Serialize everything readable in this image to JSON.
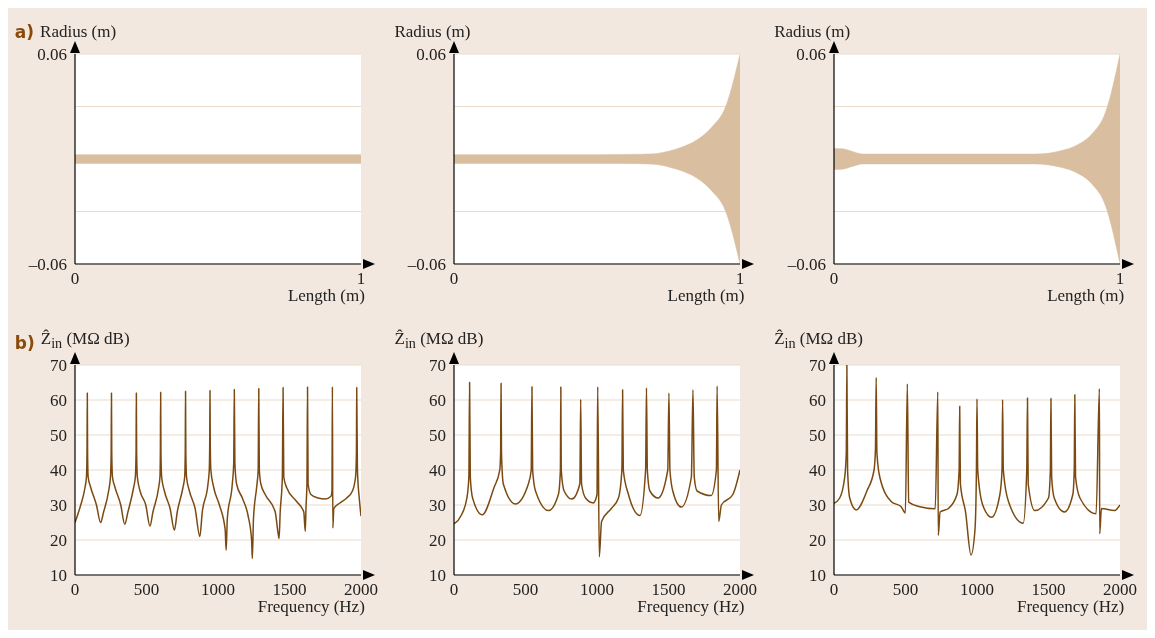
{
  "chart_data": [
    {
      "type": "area",
      "annotations": [
        "a)"
      ],
      "ylabel": "Radius (m)",
      "xlabel": "Length (m)",
      "x": [
        0,
        1
      ],
      "xlim": [
        0,
        1
      ],
      "xticks": [
        0,
        1
      ],
      "ylim": [
        -0.06,
        0.06
      ],
      "yticks": [
        {
          "value": -0.06,
          "label": "–0.06"
        },
        {
          "value": -0.03,
          "label": null
        },
        {
          "value": 0.03,
          "label": null
        },
        0.06
      ],
      "grid": "y",
      "series": [
        {
          "color": "#d9bfa0",
          "values": [
            0.0025,
            0.0025
          ]
        },
        {
          "color": "#d9bfa0",
          "values": [
            -0.0025,
            -0.0025
          ]
        }
      ]
    },
    {
      "type": "area",
      "ylabel": "Radius (m)",
      "xlabel": "Length (m)",
      "x": [
        0,
        0.5,
        0.65,
        0.7,
        0.75,
        0.8,
        0.85,
        0.9,
        0.95,
        1
      ],
      "xlim": [
        0,
        1
      ],
      "xticks": [
        0,
        1
      ],
      "ylim": [
        -0.06,
        0.06
      ],
      "yticks": [
        {
          "value": -0.06,
          "label": "–0.06"
        },
        {
          "value": -0.03,
          "label": null
        },
        {
          "value": 0.03,
          "label": null
        },
        0.06
      ],
      "grid": "y",
      "series": [
        {
          "color": "#d9bfa0",
          "values": [
            0.0025,
            0.0025,
            0.0027,
            0.003,
            0.0045,
            0.007,
            0.011,
            0.018,
            0.03,
            0.06
          ]
        },
        {
          "color": "#d9bfa0",
          "values": [
            -0.0025,
            -0.0025,
            -0.0027,
            -0.003,
            -0.0045,
            -0.007,
            -0.011,
            -0.018,
            -0.03,
            -0.06
          ]
        }
      ]
    },
    {
      "type": "area",
      "ylabel": "Radius (m)",
      "xlabel": "Length (m)",
      "x": [
        0,
        0.03,
        0.07,
        0.1,
        0.7,
        0.8,
        0.85,
        0.9,
        0.95,
        1
      ],
      "xlim": [
        0,
        1
      ],
      "xticks": [
        0,
        1
      ],
      "ylim": [
        -0.06,
        0.06
      ],
      "yticks": [
        {
          "value": -0.06,
          "label": "–0.06"
        },
        {
          "value": -0.03,
          "label": null
        },
        {
          "value": 0.03,
          "label": null
        },
        0.06
      ],
      "grid": "y",
      "series": [
        {
          "color": "#d9bfa0",
          "values": [
            0.006,
            0.0058,
            0.004,
            0.0028,
            0.0028,
            0.005,
            0.008,
            0.014,
            0.027,
            0.06
          ]
        },
        {
          "color": "#d9bfa0",
          "values": [
            -0.006,
            -0.0058,
            -0.004,
            -0.0028,
            -0.0028,
            -0.005,
            -0.008,
            -0.014,
            -0.027,
            -0.06
          ]
        }
      ]
    },
    {
      "type": "line",
      "annotations": [
        "b)"
      ],
      "ylabel": "Ẑ$_{in}$ (MΩ dB)",
      "xlabel": "Frequency (Hz)",
      "xlim": [
        0,
        2000
      ],
      "xticks": [
        0,
        500,
        1000,
        1500,
        2000
      ],
      "ylim": [
        10,
        70
      ],
      "yticks": [
        10,
        20,
        30,
        40,
        50,
        60,
        70
      ],
      "grid": "y",
      "x": [
        0,
        40,
        70,
        80,
        84,
        86,
        88,
        92,
        110,
        150,
        179,
        200,
        235,
        248,
        253,
        255,
        257,
        262,
        280,
        320,
        348,
        370,
        410,
        422,
        427,
        429,
        431,
        436,
        455,
        495,
        524,
        545,
        585,
        594,
        597,
        599,
        601,
        606,
        625,
        665,
        695,
        715,
        755,
        767,
        771,
        773,
        775,
        780,
        800,
        840,
        873,
        890,
        930,
        939,
        942,
        944,
        946,
        950,
        970,
        1010,
        1050,
        1057,
        1065,
        1100,
        1110,
        1114,
        1118,
        1130,
        1170,
        1210,
        1235,
        1240,
        1248,
        1270,
        1281,
        1285,
        1289,
        1300,
        1330,
        1400,
        1420,
        1427,
        1435,
        1450,
        1455,
        1460,
        1480,
        1550,
        1600,
        1610,
        1616,
        1622,
        1626,
        1630,
        1650,
        1700,
        1750,
        1790,
        1797,
        1800,
        1803,
        1810,
        1850,
        1900,
        1940,
        1962,
        1968,
        1970,
        1975,
        1990,
        2000
      ],
      "series": [
        {
          "color": "#7b4a12",
          "values": [
            25,
            30,
            35,
            38,
            45,
            62,
            45,
            38,
            35,
            30,
            25,
            28,
            34,
            38,
            45,
            62,
            45,
            38,
            35,
            30,
            24.5,
            28,
            35,
            38,
            45,
            62,
            45,
            38,
            34,
            30,
            24,
            28,
            35,
            38,
            45,
            62.2,
            45,
            38,
            34,
            29,
            22.8,
            28,
            35,
            38,
            45,
            62.5,
            45,
            38,
            34,
            29,
            21,
            28,
            36,
            40,
            47,
            62.7,
            47,
            40,
            35,
            30,
            23,
            17.1,
            26,
            36,
            42,
            63,
            42,
            36,
            32,
            27,
            20,
            14.7,
            26,
            35,
            40,
            63.3,
            40,
            36,
            33,
            28,
            22,
            20.4,
            28,
            38,
            63.6,
            38,
            35,
            31,
            28,
            22.5,
            30,
            36,
            63.7,
            36,
            33,
            32,
            31.7,
            32.5,
            34,
            63.8,
            23.4,
            29,
            30.5,
            32,
            34,
            38,
            45,
            63.6,
            40,
            31,
            26.8
          ]
        }
      ]
    },
    {
      "type": "line",
      "ylabel": "Ẑ$_{in}$ (MΩ dB)",
      "xlabel": "Frequency (Hz)",
      "xlim": [
        0,
        2000
      ],
      "xticks": [
        0,
        500,
        1000,
        1500,
        2000
      ],
      "ylim": [
        10,
        70
      ],
      "yticks": [
        10,
        20,
        30,
        40,
        50,
        60,
        70
      ],
      "grid": "y",
      "x": [
        0,
        50,
        90,
        104,
        109,
        114,
        130,
        197,
        280,
        320,
        326,
        329,
        332,
        345,
        429,
        520,
        540,
        545,
        550,
        570,
        661,
        730,
        744,
        747,
        750,
        770,
        824,
        880,
        886,
        892,
        920,
        974,
        1000,
        1005,
        1016,
        1032,
        1100,
        1150,
        1174,
        1179,
        1184,
        1220,
        1300,
        1340,
        1346,
        1352,
        1370,
        1427,
        1495,
        1503,
        1510,
        1530,
        1589,
        1660,
        1671,
        1680,
        1700,
        1798,
        1835,
        1840,
        1851,
        1870,
        1950,
        2000
      ],
      "series": [
        {
          "color": "#7b4a12",
          "values": [
            24.6,
            27,
            32,
            38,
            65.1,
            38,
            32,
            27.2,
            35,
            40,
            45,
            64.8,
            45,
            36,
            30.3,
            36,
            40,
            63.8,
            40,
            34,
            28.4,
            33,
            40,
            63.7,
            40,
            34,
            31.7,
            36,
            60.2,
            36,
            32,
            30.6,
            33,
            63.8,
            15.2,
            25.3,
            29,
            32,
            40,
            62.9,
            40,
            33,
            27,
            40,
            63.5,
            40,
            34,
            32,
            40,
            62,
            40,
            34,
            29.4,
            38,
            62.9,
            38,
            34,
            32.7,
            40,
            64,
            25.3,
            30,
            33,
            40
          ]
        }
      ]
    },
    {
      "type": "line",
      "ylabel": "Ẑ$_{in}$ (MΩ dB)",
      "xlabel": "Frequency (Hz)",
      "xlim": [
        0,
        2000
      ],
      "xticks": [
        0,
        500,
        1000,
        1500,
        2000
      ],
      "ylim": [
        10,
        70
      ],
      "yticks": [
        10,
        20,
        30,
        40,
        50,
        60,
        70
      ],
      "grid": "y",
      "x": [
        0,
        40,
        75,
        86,
        90,
        95,
        110,
        155,
        230,
        280,
        290,
        295,
        300,
        320,
        400,
        470,
        499,
        513,
        522,
        600,
        708,
        726,
        729,
        742,
        800,
        860,
        875,
        879,
        884,
        920,
        958,
        986,
        996,
        1000,
        1005,
        1040,
        1102,
        1160,
        1175,
        1179,
        1184,
        1220,
        1323,
        1348,
        1353,
        1358,
        1404,
        1500,
        1513,
        1517,
        1522,
        1540,
        1612,
        1670,
        1680,
        1684,
        1689,
        1720,
        1833,
        1856,
        1858,
        1870,
        1961,
        2000
      ],
      "series": [
        {
          "color": "#7b4a12",
          "values": [
            30.5,
            32,
            38,
            45,
            70,
            40,
            32,
            28.6,
            34,
            40,
            46,
            66.4,
            45,
            38,
            31,
            29.5,
            27.7,
            64.6,
            30.8,
            29.5,
            28.9,
            62.3,
            21.3,
            28,
            29,
            33,
            40,
            58.2,
            36,
            28,
            15.7,
            23,
            40,
            60.3,
            40,
            30,
            26.5,
            33,
            40,
            60.1,
            40,
            31,
            24.8,
            40,
            60.6,
            36,
            28.4,
            32,
            40,
            60.4,
            38,
            32,
            28,
            33,
            40,
            61.5,
            38,
            32,
            27.5,
            63.2,
            21.8,
            29,
            28.4,
            30
          ]
        }
      ]
    }
  ]
}
